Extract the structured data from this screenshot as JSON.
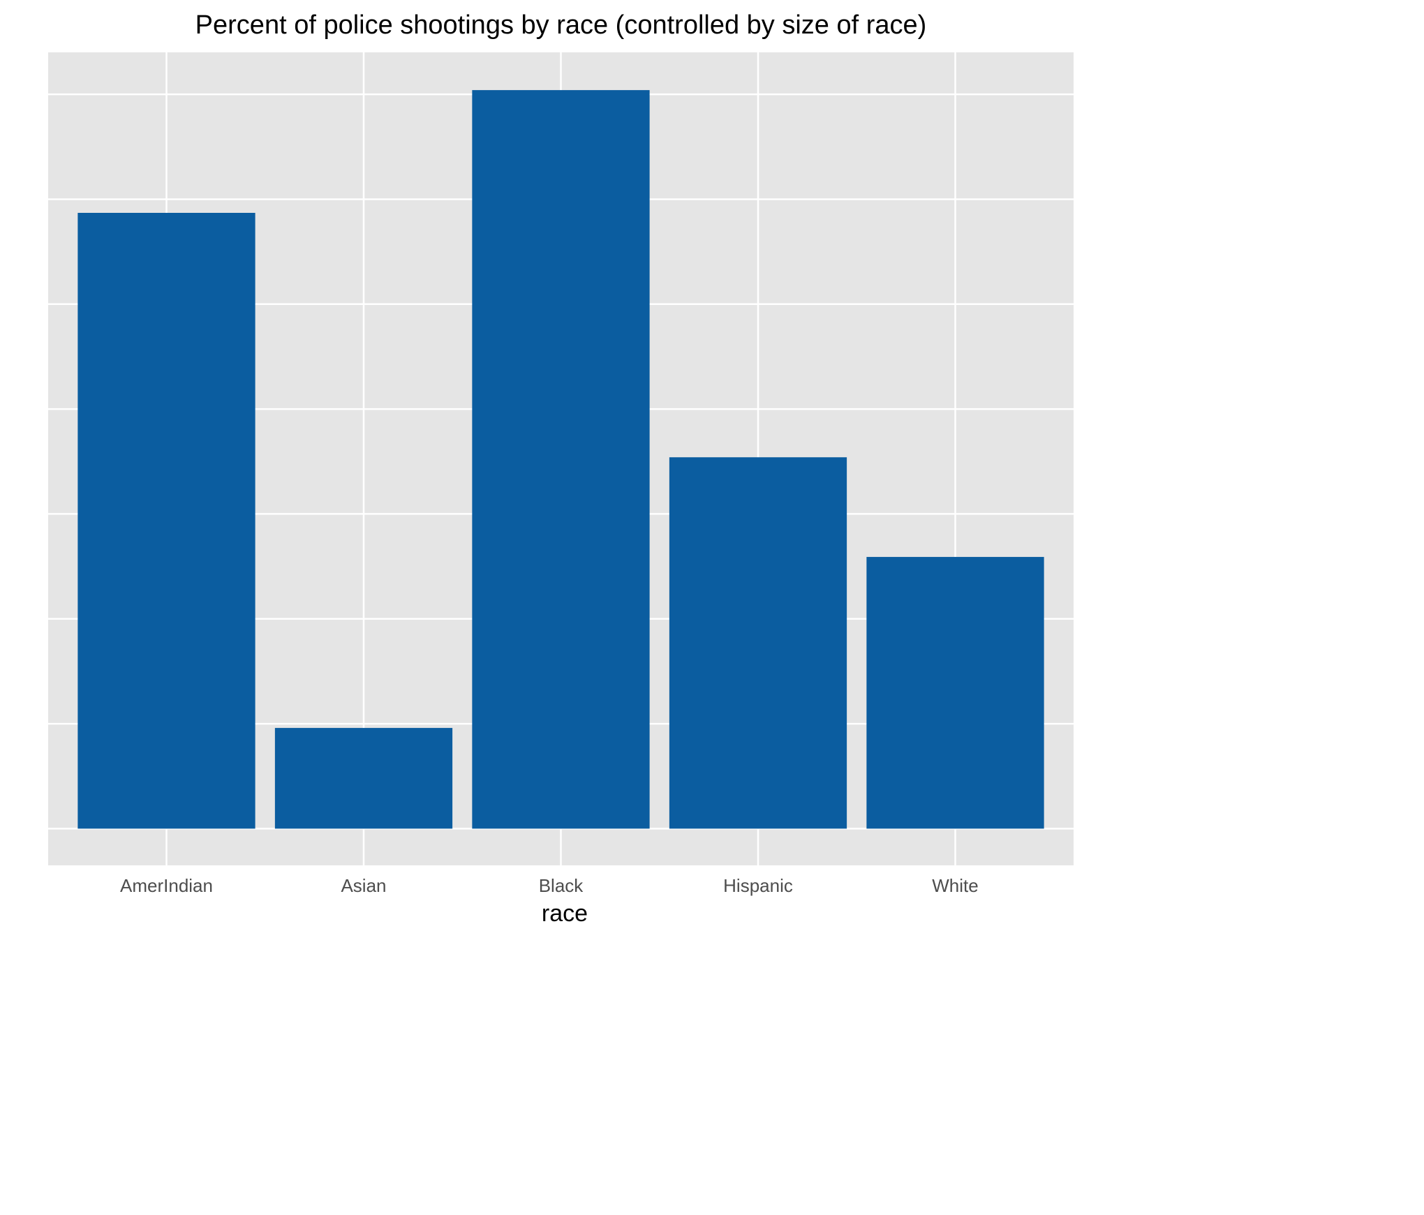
{
  "chart_data": {
    "type": "bar",
    "title": "Percent of police shootings by race (controlled by size of race)",
    "xlabel": "race",
    "ylabel": "",
    "categories": [
      "AmerIndian",
      "Asian",
      "Black",
      "Hispanic",
      "White"
    ],
    "values": [
      5.87,
      0.96,
      7.04,
      3.54,
      2.59
    ],
    "ylim": [
      -0.35,
      7.4
    ],
    "y_gridlines": [
      0,
      1,
      2,
      3,
      4,
      5,
      6,
      7
    ],
    "grid": true,
    "y_tick_labels_shown": false,
    "legend": "none",
    "colors": {
      "bar": "#0b5da0",
      "panel_background": "#e5e5e5",
      "grid": "#ffffff",
      "text": "#000000",
      "tick_label": "#4d4d4d"
    }
  }
}
